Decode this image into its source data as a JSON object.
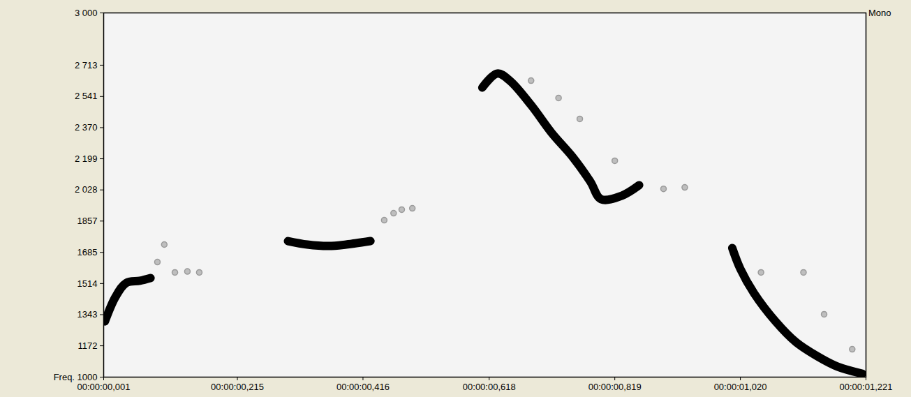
{
  "chart_data": {
    "type": "line",
    "annotation": "Mono",
    "xlim": [
      0.001,
      1.221
    ],
    "xticks": [
      {
        "value": 0.001,
        "label": "00:00:00,001"
      },
      {
        "value": 0.215,
        "label": "00:00:00,215"
      },
      {
        "value": 0.416,
        "label": "00:00:00,416"
      },
      {
        "value": 0.618,
        "label": "00:00:00,618"
      },
      {
        "value": 0.819,
        "label": "00:00:00,819"
      },
      {
        "value": 1.02,
        "label": "00:00:01,020"
      },
      {
        "value": 1.221,
        "label": "00:00:01,221"
      }
    ],
    "ylim": [
      1000,
      3000
    ],
    "yticks": [
      {
        "value": 1000,
        "label": "Freq. 1000"
      },
      1172,
      1343,
      1514,
      1685,
      1857,
      {
        "value": 2028,
        "label": "2 028"
      },
      {
        "value": 2199,
        "label": "2 199"
      },
      {
        "value": 2370,
        "label": "2 370"
      },
      {
        "value": 2541,
        "label": "2 541"
      },
      {
        "value": 2713,
        "label": "2 713"
      },
      {
        "value": 3000,
        "label": "3 000"
      }
    ],
    "grid": false,
    "series": [
      {
        "color": "#000000",
        "x": [
          0.003,
          0.02,
          0.037,
          0.059,
          0.076
        ],
        "values": [
          1306,
          1441,
          1517,
          1529,
          1544
        ]
      },
      {
        "color": "#9a9a9a",
        "type": "scatter",
        "x": [
          0.087,
          0.098,
          0.115,
          0.135,
          0.154
        ],
        "values": [
          1632,
          1728,
          1575,
          1580,
          1575
        ]
      },
      {
        "color": "#000000",
        "x": [
          0.296,
          0.327,
          0.361,
          0.389,
          0.428
        ],
        "values": [
          1747,
          1728,
          1720,
          1728,
          1747
        ]
      },
      {
        "color": "#9a9a9a",
        "type": "scatter",
        "x": [
          0.45,
          0.465,
          0.478,
          0.495
        ],
        "values": [
          1862,
          1900,
          1920,
          1927
        ]
      },
      {
        "color": "#000000",
        "x": [
          0.607,
          0.631,
          0.651,
          0.685,
          0.718,
          0.752,
          0.78,
          0.797,
          0.83,
          0.858
        ],
        "values": [
          2590,
          2667,
          2628,
          2494,
          2341,
          2207,
          2073,
          1977,
          1996,
          2054
        ]
      },
      {
        "color": "#9a9a9a",
        "type": "scatter",
        "x": [
          0.685,
          0.729,
          0.763,
          0.819,
          0.897,
          0.931
        ],
        "values": [
          2628,
          2533,
          2418,
          2188,
          2034,
          2042
        ]
      },
      {
        "color": "#000000",
        "x": [
          1.007,
          1.02,
          1.042,
          1.076,
          1.109,
          1.143,
          1.176,
          1.215
        ],
        "values": [
          1709,
          1594,
          1460,
          1307,
          1192,
          1115,
          1057,
          1019
        ]
      },
      {
        "color": "#9a9a9a",
        "type": "scatter",
        "x": [
          1.053,
          1.121,
          1.154,
          1.199
        ],
        "values": [
          1575,
          1575,
          1345,
          1153
        ]
      }
    ]
  }
}
